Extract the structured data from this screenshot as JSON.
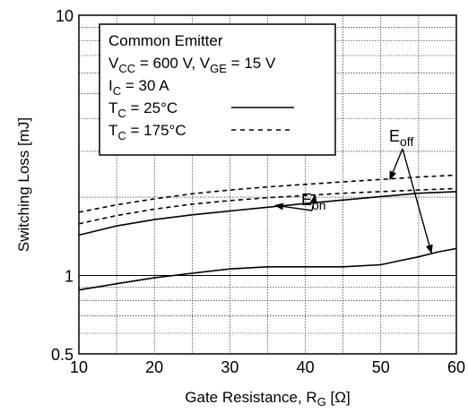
{
  "chart_data": {
    "type": "line",
    "title": "",
    "xlabel": "Gate Resistance, R",
    "xlabel_sub": "G",
    "xlabel_suffix": " [Ω]",
    "ylabel": "Switching Loss [mJ]",
    "x_scale": "linear",
    "y_scale": "log",
    "xlim": [
      10,
      60
    ],
    "ylim": [
      0.5,
      10
    ],
    "x_ticks": [
      10,
      20,
      30,
      40,
      50,
      60
    ],
    "x_tick_labels": [
      "10",
      "20",
      "30",
      "40",
      "50",
      "60"
    ],
    "y_tick_labels": [
      {
        "value": 0.5,
        "label": "0.5"
      },
      {
        "value": 1,
        "label": "1"
      },
      {
        "value": 10,
        "label": "10"
      }
    ],
    "y_gridlines": [
      0.5,
      0.6,
      0.7,
      0.8,
      0.9,
      1,
      2,
      3,
      4,
      5,
      6,
      7,
      8,
      9,
      10
    ],
    "x_gridlines": [
      15,
      20,
      25,
      30,
      35,
      40,
      45,
      50,
      55
    ],
    "grid": true,
    "legend": {
      "placement": "top-left",
      "lines": [
        {
          "text": "Common Emitter"
        },
        {
          "parts": [
            {
              "t": "V"
            },
            {
              "t": "CC",
              "sub": true
            },
            {
              "t": " = 600 V, V"
            },
            {
              "t": "GE",
              "sub": true
            },
            {
              "t": " = 15 V"
            }
          ]
        },
        {
          "parts": [
            {
              "t": "I"
            },
            {
              "t": "C",
              "sub": true
            },
            {
              "t": " = 30 A"
            }
          ]
        },
        {
          "parts": [
            {
              "t": "T"
            },
            {
              "t": "C",
              "sub": true
            },
            {
              "t": " = 25°C"
            }
          ],
          "style": "solid"
        },
        {
          "parts": [
            {
              "t": "T"
            },
            {
              "t": "C",
              "sub": true
            },
            {
              "t": " = 175°C"
            }
          ],
          "style": "dashed"
        }
      ]
    },
    "series": [
      {
        "curve": "eon",
        "style": "solid",
        "x": [
          10,
          15,
          20,
          25,
          30,
          35,
          40,
          45,
          50,
          55,
          60
        ],
        "y": [
          1.43,
          1.55,
          1.64,
          1.71,
          1.77,
          1.83,
          1.89,
          1.95,
          2.01,
          2.07,
          2.1
        ]
      },
      {
        "curve": "eon",
        "style": "dashed",
        "x": [
          10,
          15,
          20,
          25,
          30,
          35,
          40,
          45,
          50,
          55,
          60
        ],
        "y": [
          1.58,
          1.7,
          1.8,
          1.88,
          1.94,
          1.99,
          2.03,
          2.07,
          2.1,
          2.13,
          2.16
        ]
      },
      {
        "curve": "eoff",
        "style": "dashed",
        "x": [
          10,
          15,
          20,
          25,
          30,
          35,
          40,
          45,
          50,
          55,
          60
        ],
        "y": [
          1.75,
          1.87,
          1.97,
          2.06,
          2.13,
          2.19,
          2.24,
          2.29,
          2.34,
          2.39,
          2.43
        ]
      },
      {
        "curve": "eoff",
        "style": "solid",
        "x": [
          10,
          15,
          20,
          25,
          30,
          35,
          40,
          45,
          50,
          52.5,
          55,
          57.5,
          60
        ],
        "y": [
          0.88,
          0.93,
          0.98,
          1.02,
          1.06,
          1.08,
          1.08,
          1.08,
          1.1,
          1.14,
          1.18,
          1.23,
          1.27
        ]
      }
    ],
    "annotations": [
      {
        "parts": [
          {
            "t": "E"
          },
          {
            "t": "on",
            "sub": true
          }
        ],
        "id": "eon",
        "arrows_to": [
          {
            "x": 36,
            "y": 1.86
          },
          {
            "x": 41.3,
            "y": 2.04
          }
        ]
      },
      {
        "parts": [
          {
            "t": "E"
          },
          {
            "t": "off",
            "sub": true
          }
        ],
        "id": "eoff",
        "arrows_to": [
          {
            "x": 51.2,
            "y": 2.34
          },
          {
            "x": 56.7,
            "y": 1.22
          }
        ]
      }
    ]
  }
}
